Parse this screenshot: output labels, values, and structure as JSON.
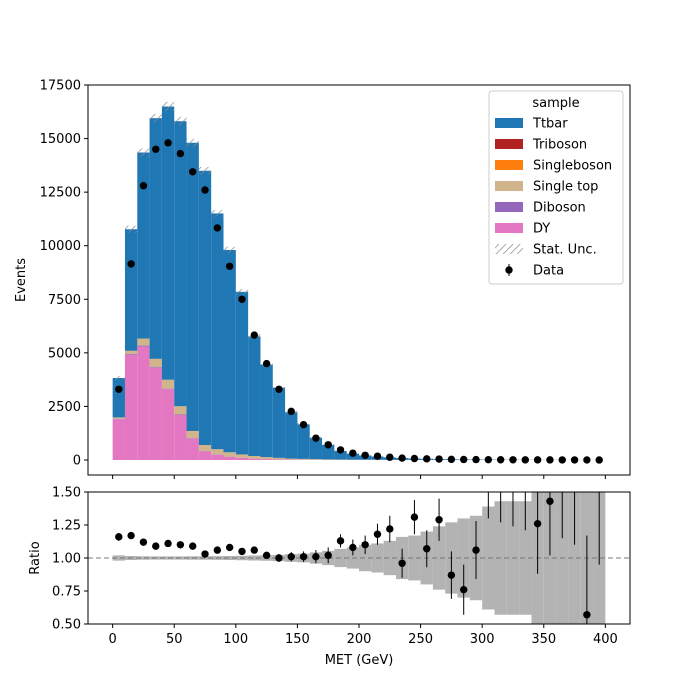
{
  "chart_data": {
    "type": "bar",
    "stacked": true,
    "xlabel": "MET (GeV)",
    "xlim": [
      -20,
      420
    ],
    "x_ticks": [
      0,
      50,
      100,
      150,
      200,
      250,
      300,
      350,
      400
    ],
    "bin_edges": [
      0,
      10,
      20,
      30,
      40,
      50,
      60,
      70,
      80,
      90,
      100,
      110,
      120,
      130,
      140,
      150,
      160,
      170,
      180,
      190,
      200,
      210,
      220,
      230,
      240,
      250,
      260,
      270,
      280,
      290,
      300,
      310,
      320,
      330,
      340,
      350,
      360,
      370,
      380,
      390,
      400
    ],
    "main_panel": {
      "ylabel": "Events",
      "ylim": [
        -700,
        17500
      ],
      "y_ticks": [
        0,
        2500,
        5000,
        7500,
        10000,
        12500,
        15000,
        17500
      ],
      "legend": {
        "title": "sample",
        "placement": "top-right",
        "entries": [
          {
            "label": "Ttbar",
            "kind": "patch",
            "color": "#1f77b4"
          },
          {
            "label": "Triboson",
            "kind": "patch",
            "color": "#b22222"
          },
          {
            "label": "Singleboson",
            "kind": "patch",
            "color": "#ff7f0e"
          },
          {
            "label": "Single top",
            "kind": "patch",
            "color": "#d2b48c"
          },
          {
            "label": "Diboson",
            "kind": "patch",
            "color": "#9467bd"
          },
          {
            "label": "DY",
            "kind": "patch",
            "color": "#e377c2"
          },
          {
            "label": "Stat. Unc.",
            "kind": "hatch",
            "color": "#888888"
          },
          {
            "label": "Data",
            "kind": "marker",
            "color": "#000000"
          }
        ]
      },
      "series": [
        {
          "name": "DY",
          "color": "#e377c2",
          "values": [
            1900,
            4900,
            5300,
            4300,
            3300,
            2100,
            1000,
            400,
            250,
            150,
            100,
            60,
            40,
            25,
            15,
            10,
            8,
            5,
            4,
            3,
            2,
            2,
            1,
            1,
            1,
            1,
            0,
            0,
            0,
            0,
            0,
            0,
            0,
            0,
            0,
            0,
            0,
            0,
            0,
            0
          ]
        },
        {
          "name": "Diboson",
          "color": "#9467bd",
          "values": [
            20,
            40,
            40,
            35,
            30,
            25,
            20,
            15,
            12,
            10,
            8,
            6,
            5,
            4,
            3,
            3,
            2,
            2,
            1,
            1,
            1,
            1,
            1,
            0,
            0,
            0,
            0,
            0,
            0,
            0,
            0,
            0,
            0,
            0,
            0,
            0,
            0,
            0,
            0,
            0
          ]
        },
        {
          "name": "Single top",
          "color": "#d2b48c",
          "values": [
            60,
            150,
            320,
            380,
            410,
            380,
            330,
            280,
            240,
            200,
            150,
            120,
            90,
            70,
            50,
            40,
            30,
            20,
            15,
            12,
            10,
            8,
            6,
            4,
            3,
            2,
            2,
            1,
            1,
            1,
            1,
            0,
            0,
            0,
            0,
            0,
            0,
            0,
            0,
            0
          ]
        },
        {
          "name": "Singleboson",
          "color": "#ff7f0e",
          "values": [
            5,
            8,
            8,
            6,
            5,
            4,
            3,
            2,
            2,
            1,
            1,
            1,
            1,
            0,
            0,
            0,
            0,
            0,
            0,
            0,
            0,
            0,
            0,
            0,
            0,
            0,
            0,
            0,
            0,
            0,
            0,
            0,
            0,
            0,
            0,
            0,
            0,
            0,
            0,
            0
          ]
        },
        {
          "name": "Triboson",
          "color": "#b22222",
          "values": [
            1,
            1,
            1,
            1,
            1,
            1,
            1,
            1,
            1,
            0,
            0,
            0,
            0,
            0,
            0,
            0,
            0,
            0,
            0,
            0,
            0,
            0,
            0,
            0,
            0,
            0,
            0,
            0,
            0,
            0,
            0,
            0,
            0,
            0,
            0,
            0,
            0,
            0,
            0,
            0
          ]
        },
        {
          "name": "Ttbar",
          "color": "#1f77b4",
          "values": [
            1840,
            5670,
            8680,
            11230,
            12750,
            13300,
            13450,
            12800,
            11000,
            9440,
            7590,
            5580,
            4320,
            3280,
            2160,
            1610,
            1000,
            680,
            400,
            280,
            200,
            150,
            110,
            85,
            65,
            52,
            40,
            32,
            26,
            21,
            17,
            14,
            11,
            9,
            8,
            6,
            5,
            4,
            3,
            3
          ]
        }
      ],
      "mc_total": [
        3830,
        10770,
        14350,
        15950,
        16500,
        15810,
        14800,
        13500,
        11510,
        9800,
        7850,
        5770,
        4460,
        3380,
        2230,
        1660,
        1040,
        710,
        420,
        300,
        210,
        160,
        120,
        90,
        70,
        55,
        42,
        33,
        27,
        22,
        18,
        14,
        11,
        9,
        8,
        6,
        5,
        4,
        3,
        3
      ],
      "stat_unc": [
        90,
        160,
        190,
        200,
        210,
        200,
        190,
        180,
        160,
        150,
        130,
        110,
        95,
        80,
        65,
        55,
        45,
        38,
        29,
        24,
        21,
        18,
        16,
        14,
        12,
        11,
        10,
        9,
        8,
        7,
        7,
        6,
        5,
        4,
        4,
        3,
        3,
        3,
        2,
        2
      ],
      "data": [
        3300,
        9150,
        12800,
        14500,
        14800,
        14300,
        13450,
        12600,
        10830,
        9040,
        7500,
        5830,
        4500,
        3300,
        2270,
        1650,
        1020,
        710,
        470,
        320,
        220,
        180,
        130,
        90,
        70,
        55,
        45,
        30,
        25,
        20,
        15,
        12,
        10,
        8,
        7,
        6,
        5,
        4,
        3,
        2
      ]
    },
    "ratio_panel": {
      "ylabel": "Ratio",
      "ylim": [
        0.5,
        1.5
      ],
      "y_ticks": [
        "0.50",
        "0.75",
        "1.00",
        "1.25",
        "1.50"
      ],
      "reference_line": 1.0,
      "unc_band_halfwidth": [
        0.02,
        0.015,
        0.013,
        0.012,
        0.012,
        0.012,
        0.013,
        0.013,
        0.014,
        0.015,
        0.017,
        0.019,
        0.021,
        0.024,
        0.029,
        0.033,
        0.043,
        0.054,
        0.069,
        0.08,
        0.1,
        0.11,
        0.13,
        0.16,
        0.17,
        0.2,
        0.24,
        0.27,
        0.3,
        0.32,
        0.39,
        0.43,
        0.43,
        0.43,
        0.5,
        0.5,
        0.6,
        0.6,
        0.6,
        0.6
      ],
      "ratio": [
        1.16,
        1.17,
        1.12,
        1.09,
        1.11,
        1.1,
        1.09,
        1.03,
        1.06,
        1.08,
        1.05,
        1.06,
        1.02,
        1.0,
        1.01,
        1.01,
        1.01,
        1.02,
        1.13,
        1.08,
        1.1,
        1.18,
        1.22,
        0.96,
        1.31,
        1.07,
        1.29,
        0.87,
        0.76,
        1.06,
        1.55,
        1.55,
        1.55,
        1.55,
        1.26,
        1.43,
        1.6,
        1.6,
        0.57,
        1.6
      ],
      "ratio_err": [
        0.03,
        0.02,
        0.015,
        0.013,
        0.012,
        0.012,
        0.013,
        0.014,
        0.015,
        0.017,
        0.019,
        0.021,
        0.025,
        0.03,
        0.035,
        0.04,
        0.05,
        0.06,
        0.05,
        0.06,
        0.07,
        0.08,
        0.1,
        0.11,
        0.13,
        0.14,
        0.16,
        0.18,
        0.19,
        0.22,
        0.25,
        0.28,
        0.31,
        0.34,
        0.38,
        0.41,
        0.45,
        0.5,
        0.6,
        0.65
      ]
    }
  }
}
